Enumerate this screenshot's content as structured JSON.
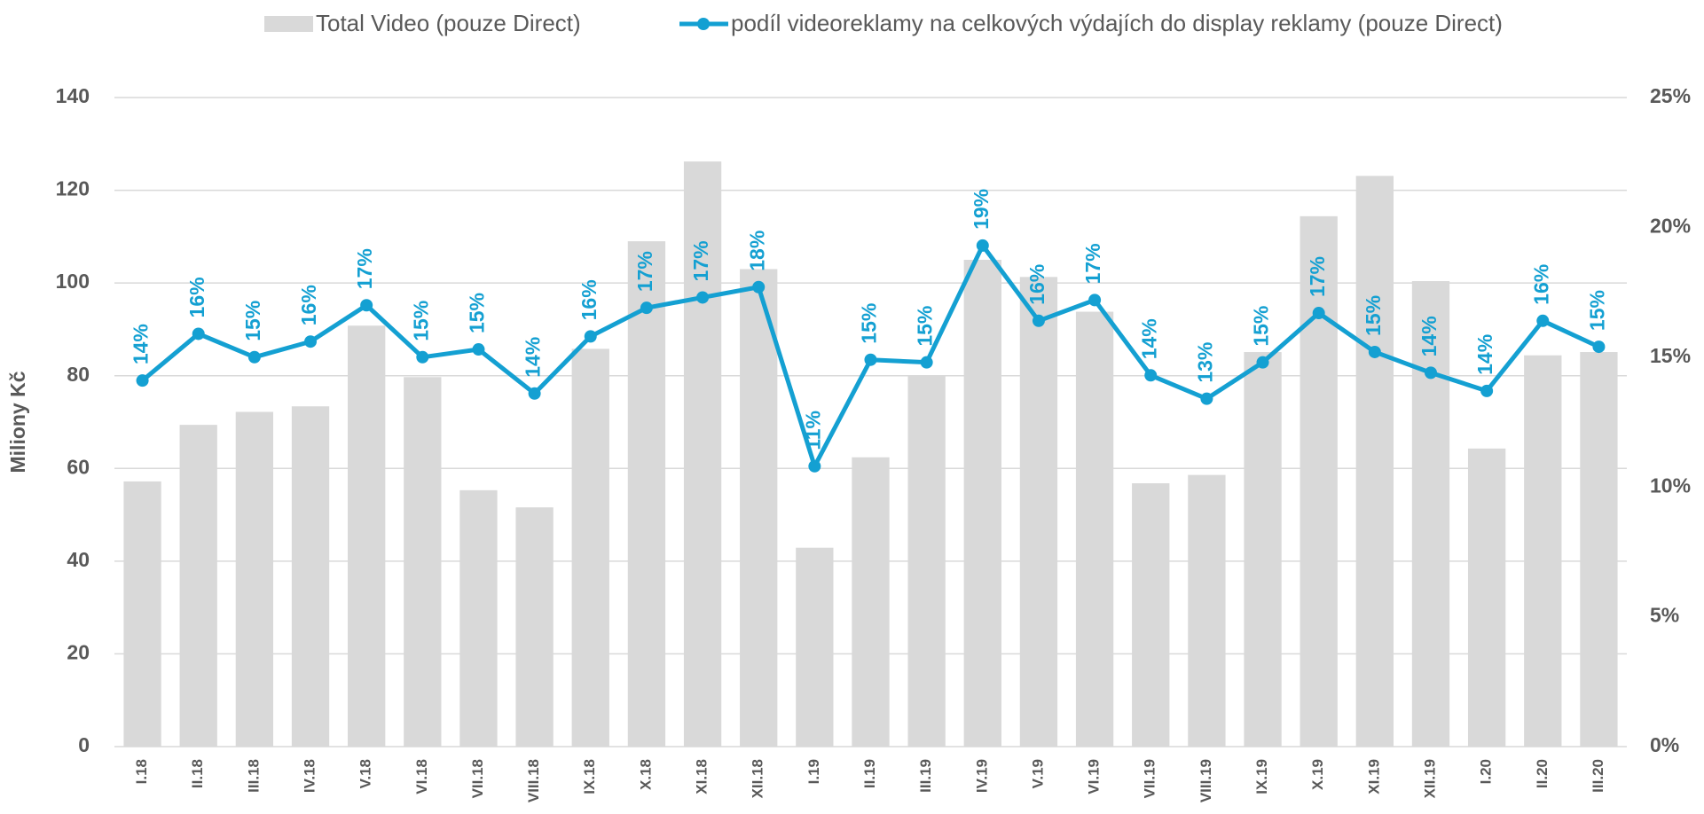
{
  "chart_data": {
    "type": "bar",
    "categories": [
      "I.18",
      "II.18",
      "III.18",
      "IV.18",
      "V.18",
      "VI.18",
      "VII.18",
      "VIII.18",
      "IX.18",
      "X.18",
      "XI.18",
      "XII.18",
      "I.19",
      "II.19",
      "III.19",
      "IV.19",
      "V.19",
      "VI.19",
      "VII.19",
      "VIII.19",
      "IX.19",
      "X.19",
      "XI.19",
      "XII.19",
      "I.20",
      "II.20",
      "III.20"
    ],
    "y_label": "Miliony Kč",
    "ylim": [
      0,
      140
    ],
    "yticks": [
      0,
      20,
      40,
      60,
      80,
      100,
      120,
      140
    ],
    "y2lim": [
      0,
      25
    ],
    "y2ticks": [
      {
        "value": 0,
        "label": "0%"
      },
      {
        "value": 5,
        "label": "5%"
      },
      {
        "value": 10,
        "label": "10%"
      },
      {
        "value": 15,
        "label": "15%"
      },
      {
        "value": 20,
        "label": "20%"
      },
      {
        "value": 25,
        "label": "25%"
      }
    ],
    "grid": true,
    "legend": "top",
    "series": [
      {
        "name": "Total Video (pouze Direct)",
        "type": "bar",
        "color": "#d9d9d9",
        "values": [
          57.2,
          69.4,
          72.2,
          73.4,
          90.8,
          79.7,
          55.3,
          51.6,
          85.8,
          109,
          126.2,
          103,
          42.9,
          62.4,
          80,
          105,
          101.3,
          93.8,
          56.8,
          58.6,
          85.1,
          114.4,
          123.1,
          100.4,
          64.3,
          84.4,
          85.1
        ]
      },
      {
        "name": "podíl videoreklamy na celkových výdajích do display reklamy (pouze Direct)",
        "type": "line",
        "axis": "y2",
        "color": "#14a0d2",
        "values": [
          14.1,
          15.9,
          15.0,
          15.6,
          17.0,
          15.0,
          15.3,
          13.6,
          15.8,
          16.9,
          17.3,
          17.7,
          10.8,
          14.9,
          14.8,
          19.3,
          16.4,
          17.2,
          14.3,
          13.4,
          14.8,
          16.7,
          15.2,
          14.4,
          13.7,
          16.4,
          15.4
        ],
        "value_labels": [
          "14%",
          "16%",
          "15%",
          "16%",
          "17%",
          "15%",
          "15%",
          "14%",
          "16%",
          "17%",
          "17%",
          "18%",
          "11%",
          "15%",
          "15%",
          "19%",
          "16%",
          "17%",
          "14%",
          "13%",
          "15%",
          "17%",
          "15%",
          "14%",
          "14%",
          "16%",
          "15%"
        ]
      }
    ]
  }
}
